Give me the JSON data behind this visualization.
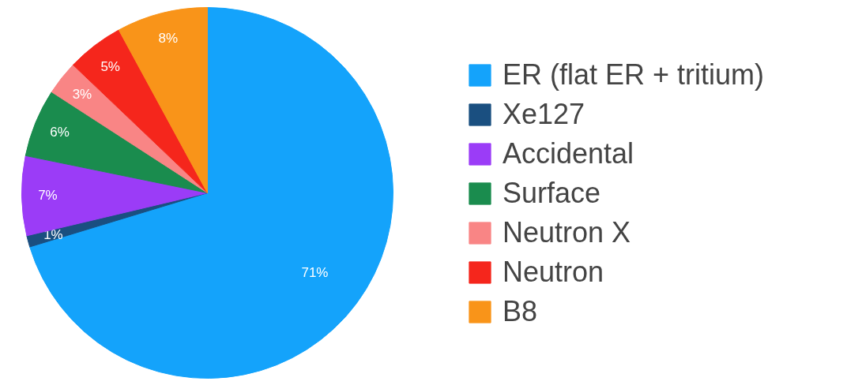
{
  "chart_data": {
    "type": "pie",
    "categories": [
      "ER (flat ER + tritium)",
      "Xe127",
      "Accidental",
      "Surface",
      "Neutron X",
      "Neutron",
      "B8"
    ],
    "values": [
      71,
      1,
      7,
      6,
      3,
      5,
      8
    ],
    "value_labels": [
      "71%",
      "1%",
      "7%",
      "6%",
      "3%",
      "5%",
      "8%"
    ],
    "colors": [
      "#14a3fb",
      "#1a4f80",
      "#9b3cf7",
      "#1a8c4e",
      "#f98585",
      "#f5261c",
      "#f99419"
    ],
    "legend": "right"
  }
}
